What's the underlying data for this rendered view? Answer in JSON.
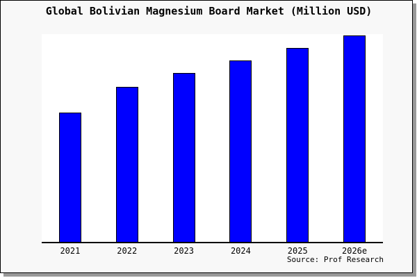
{
  "figure": {
    "background": "#f8f8f8",
    "border_color": "#000000",
    "shadow_color": "#999999"
  },
  "chart_data": {
    "type": "bar",
    "title": "Global Bolivian Magnesium Board Market (Million USD)",
    "categories": [
      "2021",
      "2022",
      "2023",
      "2024",
      "2025",
      "2026e"
    ],
    "values": [
      62.3,
      74.7,
      81.2,
      87.4,
      93.4,
      99.4
    ],
    "xlabel": "",
    "ylabel": "",
    "ylim": [
      0,
      100
    ],
    "grid": false,
    "legend": false,
    "y_axis_labels_visible": false,
    "plot_background": "#ffffff",
    "axis_color": "#000000",
    "bar_fill": "#0000ff",
    "bar_border": "#000000"
  },
  "footer": {
    "source_label": "Source: Prof Research"
  }
}
